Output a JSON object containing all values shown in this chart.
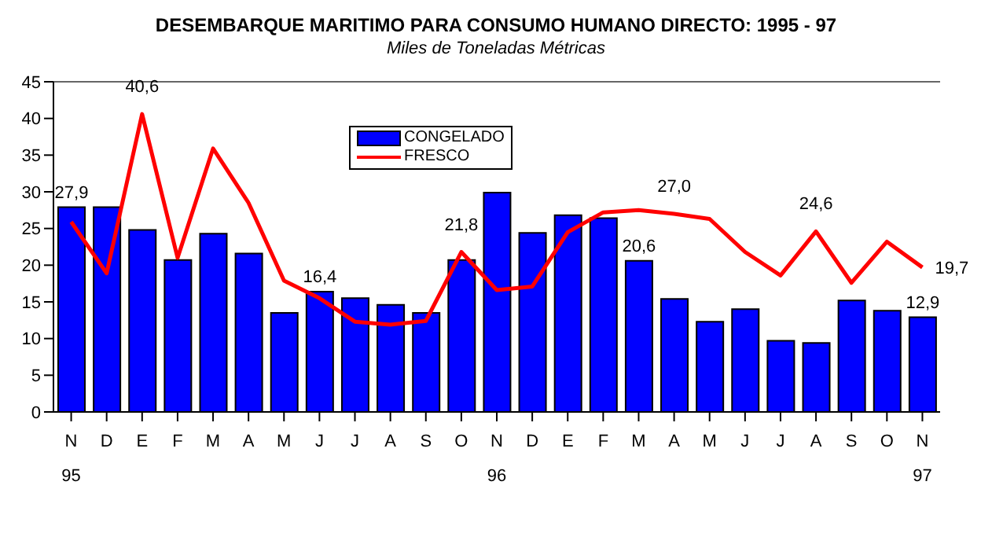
{
  "chart_data": {
    "type": "bar",
    "title": "DESEMBARQUE MARITIMO PARA CONSUMO HUMANO DIRECTO: 1995 - 97",
    "subtitle": "Miles de Toneladas Métricas",
    "categories": [
      "N\n95",
      "D",
      "E",
      "F",
      "M",
      "A",
      "M",
      "J",
      "J",
      "A",
      "S",
      "O",
      "N\n96",
      "D",
      "E",
      "F",
      "M",
      "A",
      "M",
      "J",
      "J",
      "A",
      "S",
      "O",
      "N\n97"
    ],
    "series": [
      {
        "name": "CONGELADO",
        "color": "#0000ff",
        "values": [
          27.9,
          27.9,
          24.8,
          20.7,
          24.3,
          21.6,
          13.5,
          16.4,
          15.5,
          14.6,
          13.5,
          20.7,
          29.9,
          24.4,
          26.8,
          26.4,
          20.6,
          15.4,
          12.3,
          14.0,
          9.7,
          9.4,
          15.2,
          13.8,
          12.9
        ],
        "value_labels": [
          "27,9",
          null,
          null,
          null,
          null,
          null,
          null,
          "16,4",
          null,
          null,
          null,
          null,
          null,
          null,
          null,
          null,
          "20,6",
          null,
          null,
          null,
          null,
          null,
          null,
          null,
          "12,9"
        ]
      },
      {
        "name": "FRESCO",
        "type": "line",
        "color": "#ff0000",
        "values": [
          25.9,
          18.9,
          40.6,
          21.0,
          35.9,
          28.5,
          17.9,
          15.5,
          12.3,
          11.9,
          12.4,
          21.8,
          16.6,
          17.1,
          24.5,
          27.2,
          27.5,
          27.0,
          26.3,
          21.8,
          18.6,
          24.6,
          17.6,
          23.2,
          19.7
        ],
        "value_labels": [
          null,
          null,
          "40,6",
          null,
          null,
          null,
          null,
          null,
          null,
          null,
          null,
          "21,8",
          null,
          null,
          null,
          null,
          null,
          "27,0",
          null,
          null,
          null,
          "24,6",
          null,
          null,
          "19,7"
        ]
      }
    ],
    "ylim": [
      0,
      45
    ],
    "yticks": [
      0,
      5,
      10,
      15,
      20,
      25,
      30,
      35,
      40,
      45
    ],
    "grid": false,
    "legend": "top",
    "marker": "none",
    "line_style": "solid"
  }
}
